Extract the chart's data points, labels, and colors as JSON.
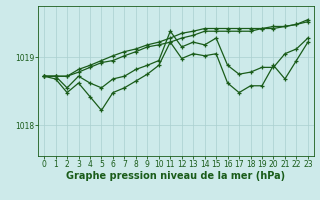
{
  "title": "Graphe pression niveau de la mer (hPa)",
  "bg_color": "#cdeaea",
  "grid_color": "#aacfcf",
  "line_color": "#1a5c1a",
  "xlim": [
    -0.5,
    23.5
  ],
  "ylim": [
    1017.55,
    1019.75
  ],
  "yticks": [
    1018,
    1019
  ],
  "xticks": [
    0,
    1,
    2,
    3,
    4,
    5,
    6,
    7,
    8,
    9,
    10,
    11,
    12,
    13,
    14,
    15,
    16,
    17,
    18,
    19,
    20,
    21,
    22,
    23
  ],
  "series": [
    [
      1018.72,
      1018.72,
      1018.55,
      1018.72,
      1018.62,
      1018.55,
      1018.68,
      1018.72,
      1018.82,
      1018.88,
      1018.95,
      1019.38,
      1019.15,
      1019.22,
      1019.18,
      1019.28,
      1018.88,
      1018.75,
      1018.78,
      1018.85,
      1018.85,
      1019.05,
      1019.12,
      1019.28
    ],
    [
      1018.72,
      1018.68,
      1018.48,
      1018.62,
      1018.42,
      1018.22,
      1018.48,
      1018.55,
      1018.65,
      1018.75,
      1018.88,
      1019.22,
      1018.98,
      1019.05,
      1019.02,
      1019.05,
      1018.62,
      1018.48,
      1018.58,
      1018.58,
      1018.88,
      1018.68,
      1018.95,
      1019.22
    ],
    [
      1018.72,
      1018.72,
      1018.72,
      1018.78,
      1018.85,
      1018.92,
      1018.95,
      1019.02,
      1019.08,
      1019.15,
      1019.18,
      1019.22,
      1019.28,
      1019.32,
      1019.38,
      1019.38,
      1019.38,
      1019.38,
      1019.38,
      1019.42,
      1019.42,
      1019.45,
      1019.48,
      1019.52
    ],
    [
      1018.72,
      1018.72,
      1018.72,
      1018.82,
      1018.88,
      1018.95,
      1019.02,
      1019.08,
      1019.12,
      1019.18,
      1019.22,
      1019.28,
      1019.35,
      1019.38,
      1019.42,
      1019.42,
      1019.42,
      1019.42,
      1019.42,
      1019.42,
      1019.45,
      1019.45,
      1019.48,
      1019.55
    ]
  ],
  "title_fontsize": 7,
  "tick_fontsize": 5.5,
  "linewidth": 0.9,
  "markersize": 3.5
}
